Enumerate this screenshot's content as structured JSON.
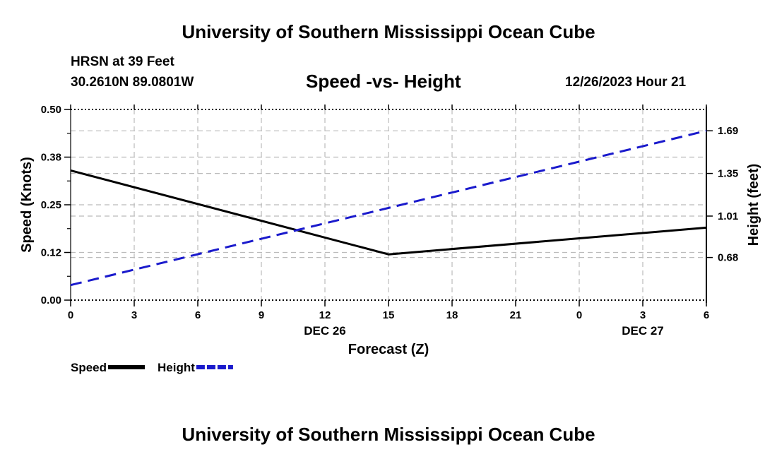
{
  "page": {
    "title_top": "University of Southern Mississippi Ocean Cube",
    "title_bottom": "University of Southern Mississippi Ocean Cube",
    "station": "HRSN at 39 Feet",
    "coords": "30.2610N  89.0801W",
    "datetime": "12/26/2023 Hour 21"
  },
  "chart_data": {
    "type": "line",
    "title": "Speed -vs- Height",
    "xlabel": "Forecast (Z)",
    "ylabel_left": "Speed (Knots)",
    "ylabel_right": "Height (feet)",
    "x": [
      0,
      3,
      6,
      9,
      12,
      15,
      18,
      21,
      24,
      27,
      30
    ],
    "x_tick_labels": [
      "0",
      "3",
      "6",
      "9",
      "12",
      "15",
      "18",
      "21",
      "0",
      "3",
      "6"
    ],
    "x_date_labels": [
      {
        "x": 12,
        "label": "DEC 26"
      },
      {
        "x": 27,
        "label": "DEC 27"
      }
    ],
    "xlim": [
      0,
      30
    ],
    "ylim_left": [
      0,
      0.5
    ],
    "yticks_left": [
      0.0,
      0.125,
      0.25,
      0.375,
      0.5
    ],
    "ytick_labels_left": [
      "0.00",
      "0.12",
      "0.25",
      "0.38",
      "0.50"
    ],
    "ylim_right": [
      0.34,
      1.86
    ],
    "yticks_right": [
      0.68,
      1.01,
      1.35,
      1.69
    ],
    "ytick_labels_right": [
      "0.68",
      "1.01",
      "1.35",
      "1.69"
    ],
    "grid": true,
    "series": [
      {
        "name": "Speed",
        "axis": "left",
        "color": "#000000",
        "dash": "solid",
        "x": [
          0,
          15,
          30
        ],
        "values": [
          0.34,
          0.12,
          0.19
        ]
      },
      {
        "name": "Height",
        "axis": "right",
        "color": "#1a1acc",
        "dash": "dashed",
        "x": [
          0,
          30
        ],
        "values": [
          0.46,
          1.69
        ]
      }
    ],
    "legend": [
      {
        "label": "Speed",
        "color": "#000000",
        "dash": "solid"
      },
      {
        "label": "Height",
        "color": "#1a1acc",
        "dash": "dashed"
      }
    ]
  }
}
